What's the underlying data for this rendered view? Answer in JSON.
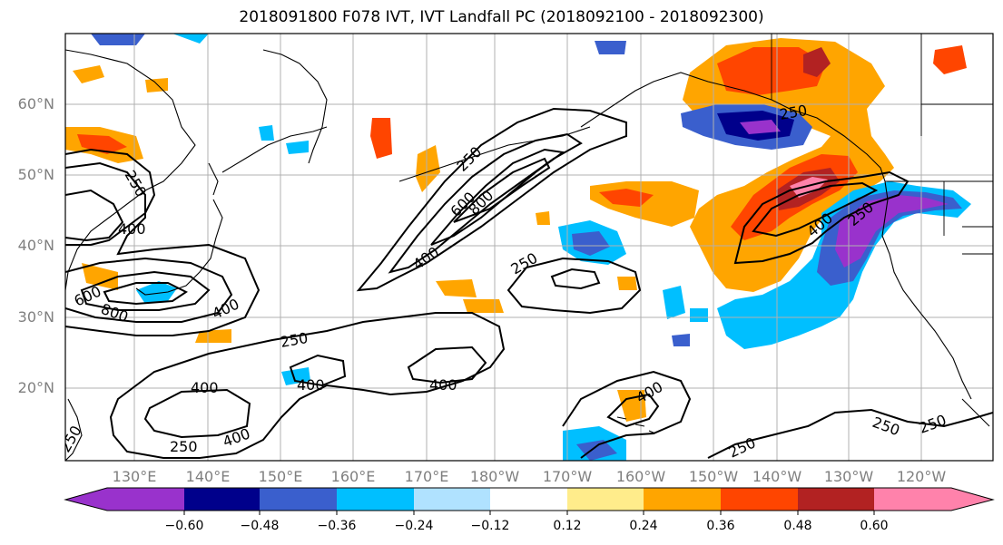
{
  "title": "2018091800 F078 IVT, IVT Landfall PC (2018092100 - 2018092300)",
  "map": {
    "lat_labels": [
      "60°N",
      "50°N",
      "40°N",
      "30°N",
      "20°N"
    ],
    "lon_labels": [
      "130°E",
      "140°E",
      "150°E",
      "160°E",
      "170°E",
      "180°W",
      "170°W",
      "160°W",
      "150°W",
      "140°W",
      "130°W",
      "120°W"
    ],
    "contour_labels": [
      "250",
      "400",
      "600",
      "800",
      "250",
      "400",
      "600",
      "800",
      "250",
      "400",
      "250",
      "400",
      "250",
      "400",
      "400",
      "250",
      "400",
      "250",
      "400",
      "250",
      "400",
      "250",
      "250",
      "250"
    ],
    "ivt_contour_levels": [
      250,
      400,
      600,
      800
    ]
  },
  "colorbar": {
    "tick_labels": [
      "−0.60",
      "−0.48",
      "−0.36",
      "−0.24",
      "−0.12",
      "0.12",
      "0.24",
      "0.36",
      "0.48",
      "0.60"
    ],
    "colors": [
      "#9932cc",
      "#00008b",
      "#3a5fcd",
      "#00bfff",
      "#b0e2ff",
      "#ffffff",
      "#ffec8b",
      "#ffa500",
      "#ff4500",
      "#b22222",
      "#ff82ab"
    ]
  },
  "colors": {
    "purple": "#9932cc",
    "navy": "#00008b",
    "royal": "#3a5fcd",
    "sky": "#00bfff",
    "light_sky": "#b0e2ff",
    "yellow": "#ffec8b",
    "orange": "#ffa500",
    "orange_red": "#ff4500",
    "firebrick": "#b22222",
    "pink": "#ff82ab",
    "grid": "#b0b0b0",
    "contour": "#000000",
    "coast": "#000000"
  }
}
